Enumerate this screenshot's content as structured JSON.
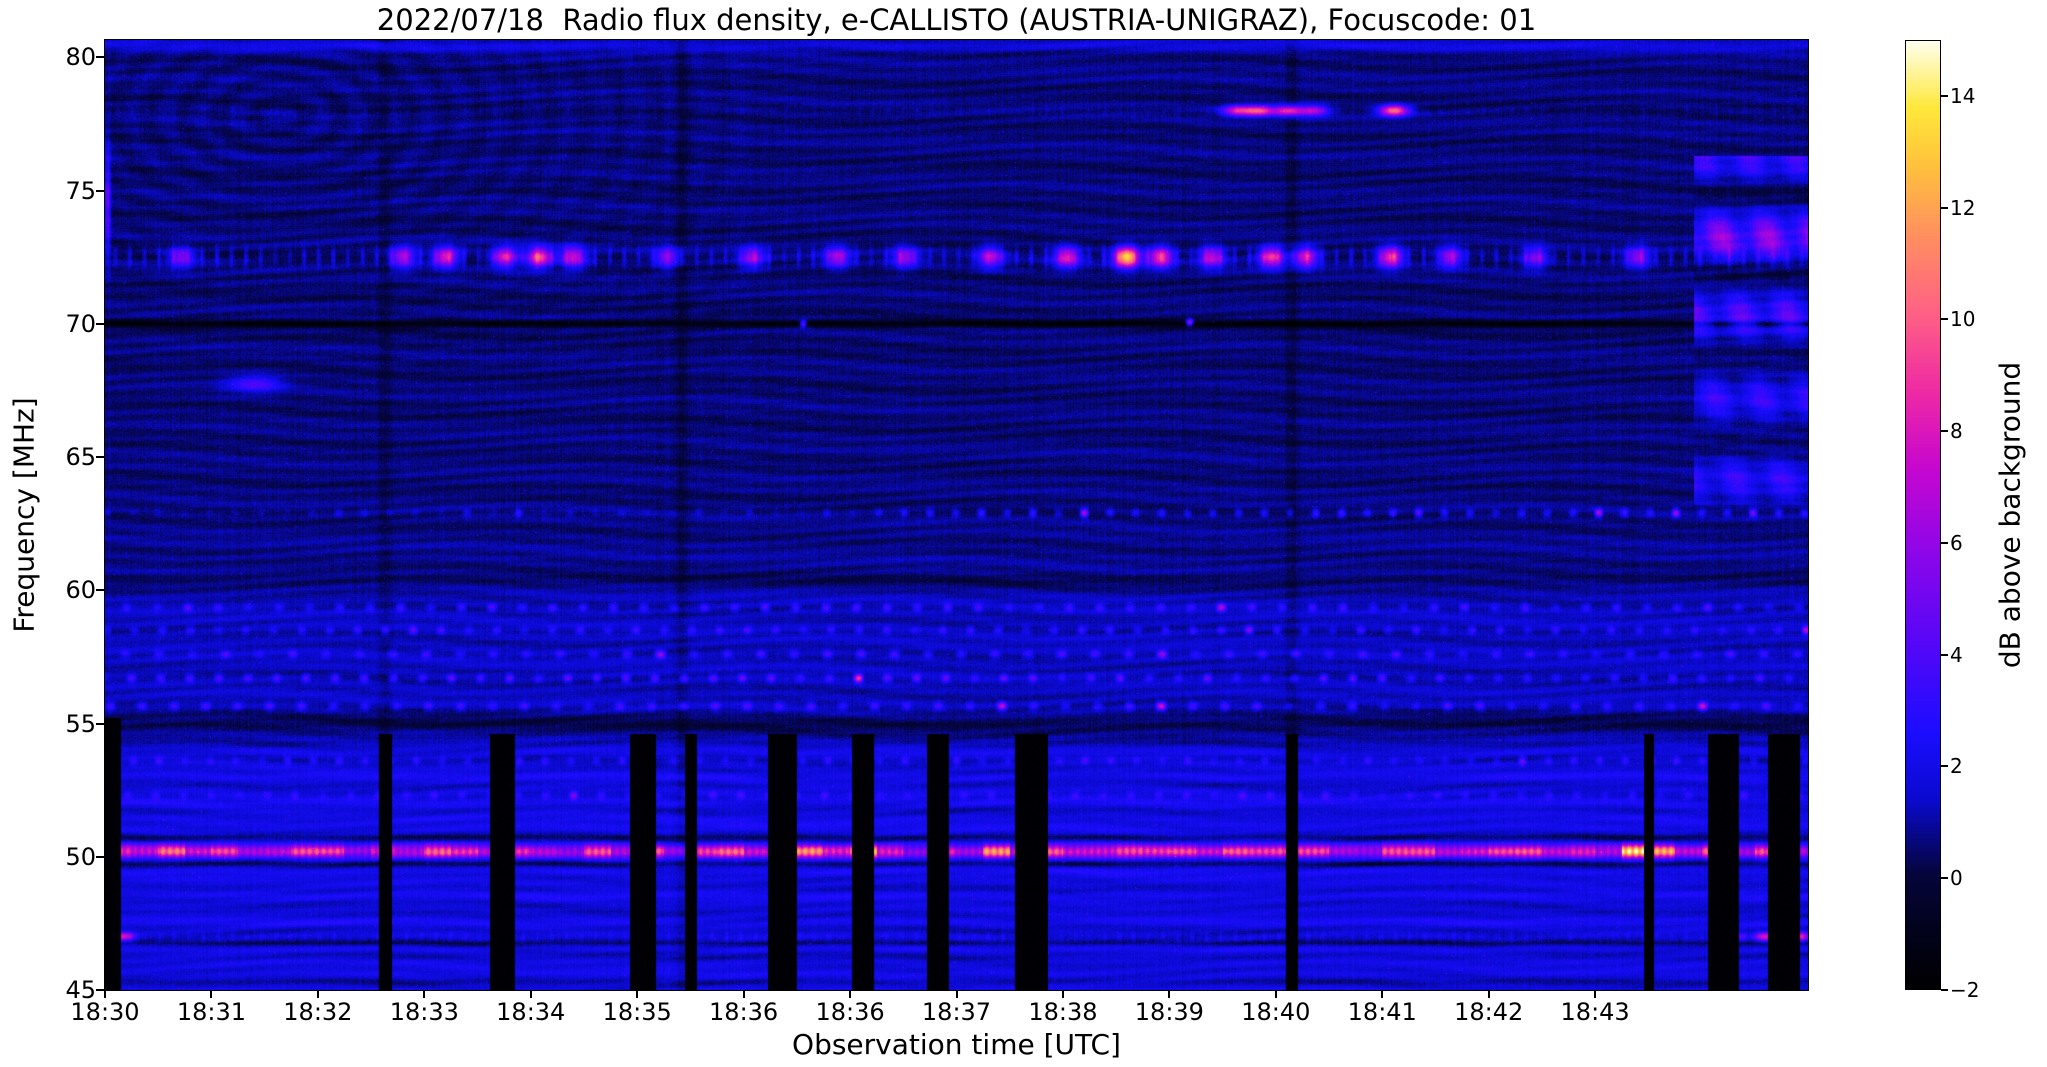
{
  "figure": {
    "title": "2022/07/18  Radio flux density, e-CALLISTO (AUSTRIA-UNIGRAZ), Focuscode: 01",
    "xlabel": "Observation time [UTC]",
    "ylabel": "Frequency [MHz]",
    "colorbar_label": "dB above background"
  },
  "chart_data": {
    "type": "heatmap",
    "subtype": "radio-spectrogram",
    "title": "2022/07/18  Radio flux density, e-CALLISTO (AUSTRIA-UNIGRAZ), Focuscode: 01",
    "xlabel": "Observation time [UTC]",
    "ylabel": "Frequency [MHz]",
    "time_start": "18:30",
    "x_total_minutes": 16,
    "x_ticks": [
      "18:30",
      "18:31",
      "18:32",
      "18:33",
      "18:34",
      "18:35",
      "18:36",
      "18:36",
      "18:37",
      "18:38",
      "18:39",
      "18:40",
      "18:41",
      "18:42",
      "18:43"
    ],
    "y_ticks": [
      80,
      75,
      70,
      65,
      60,
      55,
      50,
      45
    ],
    "freq_range": [
      45,
      80.65
    ],
    "grid": false,
    "colorbar": {
      "label": "dB above background",
      "range": [
        -2,
        15
      ],
      "ticks": [
        -2,
        0,
        2,
        4,
        6,
        8,
        10,
        12,
        14
      ],
      "tick_labels": [
        "−2",
        "0",
        "2",
        "4",
        "6",
        "8",
        "10",
        "12",
        "14"
      ]
    },
    "colormap": {
      "name": "gnuplot2-like",
      "stops": [
        [
          0.0,
          "#000000"
        ],
        [
          0.06,
          "#02021c"
        ],
        [
          0.12,
          "#05053a"
        ],
        [
          0.2,
          "#0a0acf"
        ],
        [
          0.27,
          "#1b0dff"
        ],
        [
          0.36,
          "#5307f8"
        ],
        [
          0.46,
          "#8d06e9"
        ],
        [
          0.55,
          "#c707cf"
        ],
        [
          0.63,
          "#ee2aa4"
        ],
        [
          0.71,
          "#ff5f86"
        ],
        [
          0.79,
          "#ff8c62"
        ],
        [
          0.87,
          "#ffc23c"
        ],
        [
          0.93,
          "#ffe83a"
        ],
        [
          1.0,
          "#ffffee"
        ]
      ]
    },
    "base_profile": [
      [
        45,
        1.45
      ],
      [
        46.5,
        1.75
      ],
      [
        48,
        1.7
      ],
      [
        50,
        1.85
      ],
      [
        52,
        1.8
      ],
      [
        53.5,
        1.7
      ],
      [
        54.4,
        1.35
      ],
      [
        55,
        0.95
      ],
      [
        55.6,
        1.2
      ],
      [
        57,
        1.2
      ],
      [
        59,
        1.25
      ],
      [
        60.1,
        1.05
      ],
      [
        61,
        0.75
      ],
      [
        62.5,
        0.62
      ],
      [
        64,
        0.58
      ],
      [
        67,
        0.52
      ],
      [
        70,
        0.5
      ],
      [
        73,
        0.5
      ],
      [
        76,
        0.52
      ],
      [
        78.5,
        0.55
      ],
      [
        80.65,
        0.62
      ]
    ],
    "features": [
      {
        "kind": "hline",
        "f": 50.2,
        "w": 0.17,
        "db": 8.5,
        "seg": 4,
        "base": 0.5,
        "amp": 0.6,
        "desc": "strong intermittent carrier line at ~50.2 MHz, pink/red across whole observation"
      },
      {
        "kind": "hline",
        "f": 49.72,
        "w": 0.1,
        "db": -1.1,
        "desc": "dark edge below carrier"
      },
      {
        "kind": "hline",
        "f": 50.68,
        "w": 0.1,
        "db": -1.1,
        "desc": "dark edge above carrier"
      },
      {
        "kind": "hline",
        "f": 46.75,
        "w": 0.1,
        "db": -1.3,
        "desc": "dark notch near 46.8 MHz"
      },
      {
        "kind": "burstrow",
        "f": 47.0,
        "w": 0.12,
        "db": 7,
        "rt": 0.004,
        "dash": 0.1,
        "spots": [
          [
            0.003,
            1.0
          ],
          [
            0.012,
            0.8
          ],
          [
            0.955,
            0.75
          ],
          [
            0.975,
            0.85
          ],
          [
            0.995,
            0.9
          ]
        ],
        "desc": "47 MHz line bright at start and end of record"
      },
      {
        "kind": "hline",
        "f": 54.97,
        "w": 0.3,
        "db": -0.9,
        "desc": "dark gap near 55 MHz"
      },
      {
        "kind": "hline",
        "f": 60.35,
        "w": 0.22,
        "db": -0.7,
        "desc": "dark gap near 60.3 MHz"
      },
      {
        "kind": "dotrow",
        "f": 52.3,
        "db": 1.6,
        "dot": 24,
        "phase": 2.7
      },
      {
        "kind": "dotrow",
        "f": 53.6,
        "db": 1.8,
        "dot": 26,
        "phase": 0.9
      },
      {
        "kind": "dotrow",
        "f": 55.65,
        "db": 2.3,
        "dot": 21,
        "phase": 0.5
      },
      {
        "kind": "dotrow",
        "f": 56.7,
        "db": 2.8,
        "dot": 23,
        "phase": 2.1,
        "brightp": 0.88,
        "bright": 2.6,
        "desc": "dotted RFI row 56.7 MHz with occasional pink dashes"
      },
      {
        "kind": "dotrow",
        "f": 57.6,
        "db": 2.3,
        "dot": 20,
        "phase": 4.0
      },
      {
        "kind": "dotrow",
        "f": 58.5,
        "db": 2.1,
        "dot": 24,
        "phase": 1.2
      },
      {
        "kind": "dotrow",
        "f": 59.35,
        "db": 2.5,
        "dot": 22,
        "phase": 3.3
      },
      {
        "kind": "dotrow",
        "f": 62.9,
        "db": 2.6,
        "dot": 26,
        "phase": 1.1,
        "t": [
          0.45,
          1.0
        ],
        "faint": 0.3,
        "brightp": 0.86,
        "bright": 2.6,
        "desc": "dotted line ~62.9 MHz, brighter after ~18:38"
      },
      {
        "kind": "hline",
        "f": 70.0,
        "w": 0.09,
        "db": -2.2,
        "desc": "dark horizontal notch line at 70.0 MHz"
      },
      {
        "kind": "hline",
        "f": 80.45,
        "w": 0.15,
        "db": 1.2,
        "desc": "slightly brighter top edge"
      },
      {
        "kind": "burstrow",
        "f": 72.5,
        "w": 0.26,
        "db": 9,
        "rt": 0.005,
        "dash": 0.16,
        "spots": [
          [
            0.045,
            0.55
          ],
          [
            0.175,
            0.7
          ],
          [
            0.2,
            0.85
          ],
          [
            0.235,
            0.85
          ],
          [
            0.255,
            1.0
          ],
          [
            0.275,
            0.8
          ],
          [
            0.33,
            0.55
          ],
          [
            0.38,
            0.6
          ],
          [
            0.43,
            0.65
          ],
          [
            0.47,
            0.6
          ],
          [
            0.52,
            0.7
          ],
          [
            0.565,
            0.85
          ],
          [
            0.6,
            1.45
          ],
          [
            0.62,
            0.95
          ],
          [
            0.65,
            0.75
          ],
          [
            0.685,
            0.95
          ],
          [
            0.705,
            0.8
          ],
          [
            0.755,
            0.95
          ],
          [
            0.79,
            0.65
          ],
          [
            0.84,
            0.55
          ],
          [
            0.9,
            0.6
          ]
        ],
        "desc": "intermittent RFI band 72.2-72.8 MHz with bright pink/orange/yellow bursts"
      },
      {
        "kind": "burstrow",
        "f": 78.0,
        "w": 0.14,
        "db": 9,
        "rt": 0.006,
        "dash": 0.03,
        "spots": [
          [
            0.665,
            0.8
          ],
          [
            0.678,
            0.95
          ],
          [
            0.695,
            0.9
          ],
          [
            0.71,
            0.7
          ],
          [
            0.757,
            1.15
          ]
        ],
        "desc": "bright pink streaks near 78 MHz around 18:39.5-18:41"
      },
      {
        "kind": "blob",
        "t": 0.088,
        "f": 67.75,
        "db": 3.2,
        "rt": 0.011,
        "rf": 0.22,
        "desc": "faint blue streak ~67.8 MHz near 18:31.4"
      },
      {
        "kind": "blob",
        "t": 0.0015,
        "f": 74.5,
        "db": 4,
        "rt": 0.0012,
        "rf": 1.4,
        "desc": "bright pixels at left edge 73-76 MHz"
      },
      {
        "kind": "blob",
        "t": 0.41,
        "f": 70.0,
        "db": 6,
        "rt": 0.0015,
        "rf": 0.09,
        "desc": "bright dot on 70 MHz line"
      },
      {
        "kind": "blob",
        "t": 0.637,
        "f": 70.05,
        "db": 7,
        "rt": 0.0015,
        "rf": 0.09,
        "desc": "bright dot on 70 MHz line"
      },
      {
        "kind": "patch",
        "t": [
          0.933,
          1.0
        ],
        "f": [
          63.2,
          76.3
        ],
        "db": 2.8,
        "desc": "wavy pink/blue interference patch at right edge, 63-76 MHz after ~18:43.2"
      },
      {
        "kind": "vdark",
        "t": 2.63,
        "w": 0.05,
        "db": 0.45
      },
      {
        "kind": "vdark",
        "t": 5.42,
        "w": 0.04,
        "db": 0.55
      },
      {
        "kind": "vdark",
        "t": 11.15,
        "w": 0.04,
        "db": 0.55
      },
      {
        "kind": "vgap",
        "t": 0.07,
        "w": 0.15,
        "f": [
          45,
          55.2
        ],
        "desc": "data gap column (black) at 18:30"
      },
      {
        "kind": "vgap",
        "t": 2.63,
        "w": 0.12,
        "f": [
          45,
          54.6
        ]
      },
      {
        "kind": "vgap",
        "t": 3.73,
        "w": 0.22,
        "f": [
          45,
          54.6
        ]
      },
      {
        "kind": "vgap",
        "t": 5.05,
        "w": 0.24,
        "f": [
          45,
          54.6
        ]
      },
      {
        "kind": "vgap",
        "t": 5.5,
        "w": 0.1,
        "f": [
          45,
          54.6
        ]
      },
      {
        "kind": "vgap",
        "t": 6.36,
        "w": 0.26,
        "f": [
          45,
          54.6
        ]
      },
      {
        "kind": "vgap",
        "t": 7.12,
        "w": 0.2,
        "f": [
          45,
          54.6
        ]
      },
      {
        "kind": "vgap",
        "t": 7.82,
        "w": 0.2,
        "f": [
          45,
          54.6
        ]
      },
      {
        "kind": "vgap",
        "t": 8.7,
        "w": 0.3,
        "f": [
          45,
          54.6
        ]
      },
      {
        "kind": "vgap",
        "t": 11.15,
        "w": 0.1,
        "f": [
          45,
          54.6
        ]
      },
      {
        "kind": "vgap",
        "t": 14.5,
        "w": 0.08,
        "f": [
          45,
          54.6
        ]
      },
      {
        "kind": "vgap",
        "t": 15.2,
        "w": 0.28,
        "f": [
          45,
          54.6
        ]
      },
      {
        "kind": "vgap",
        "t": 15.77,
        "w": 0.3,
        "f": [
          45,
          54.6
        ]
      }
    ]
  }
}
